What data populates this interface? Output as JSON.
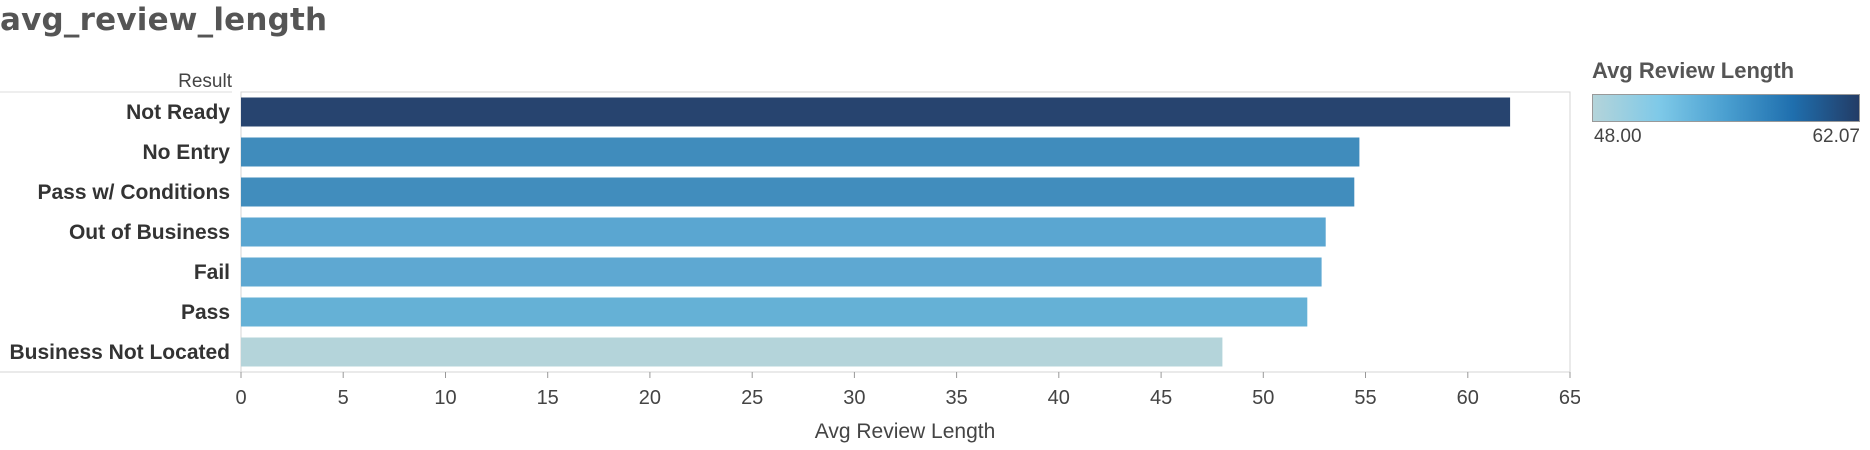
{
  "sheet": {
    "title": "avg_review_length"
  },
  "legend": {
    "title": "Avg Review Length",
    "min_label": "48.00",
    "max_label": "62.07",
    "min_value": 48.0,
    "max_value": 62.07,
    "ramp_colors": [
      "#b4d4da",
      "#7ec9e8",
      "#4a9fd0",
      "#1f6fae",
      "#233c66"
    ]
  },
  "chart_data": {
    "type": "bar",
    "orientation": "horizontal",
    "title": "avg_review_length",
    "row_header": "Result",
    "xlabel": "Avg Review Length",
    "xlim": [
      0,
      65
    ],
    "xticks": [
      0,
      5,
      10,
      15,
      20,
      25,
      30,
      35,
      40,
      45,
      50,
      55,
      60,
      65
    ],
    "grid": false,
    "legend_position": "right",
    "categories": [
      "Not Ready",
      "No Entry",
      "Pass w/ Conditions",
      "Out of Business",
      "Fail",
      "Pass",
      "Business Not Located"
    ],
    "values": [
      62.07,
      54.7,
      54.45,
      53.05,
      52.85,
      52.15,
      48.0
    ],
    "colors": [
      "#27446f",
      "#408cbc",
      "#418dbd",
      "#5aa6d1",
      "#5ea8d2",
      "#65b1d6",
      "#b4d4da"
    ]
  }
}
